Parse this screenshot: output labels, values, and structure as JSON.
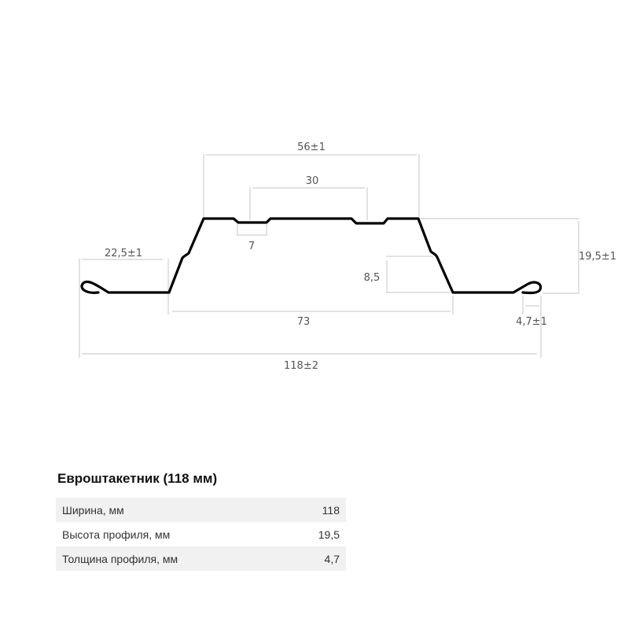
{
  "diagram": {
    "dimensions": {
      "top_width": "56±1",
      "middle_segment": "30",
      "groove": "7",
      "flange_left": "22,5±1",
      "step_height": "8,5",
      "base_width": "73",
      "total_width": "118±2",
      "height": "19,5±1",
      "hem": "4,7±1"
    },
    "colors": {
      "profile": "#000000",
      "dimension_lines": "#c4c4c4",
      "labels": "#555555"
    }
  },
  "specs": {
    "title": "Евроштакетник (118 мм)",
    "rows": [
      {
        "label": "Ширина, мм",
        "value": "118"
      },
      {
        "label": "Высота профиля, мм",
        "value": "19,5"
      },
      {
        "label": "Толщина профиля, мм",
        "value": "4,7"
      }
    ]
  }
}
